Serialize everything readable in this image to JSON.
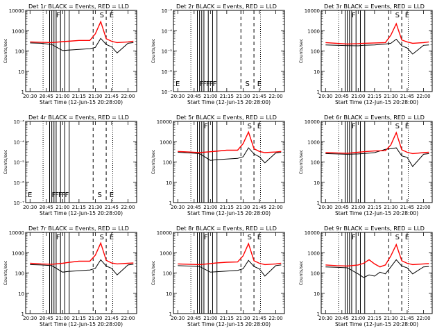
{
  "figure": {
    "time_label": "Start Time (12-Jun-15 20:28:00)",
    "y_label": "Counts/sec",
    "x_ticks": [
      "20:30",
      "20:45",
      "21:00",
      "21:15",
      "21:30",
      "21:45",
      "22:00"
    ],
    "colors": {
      "events": "#000000",
      "lld": "#ff0000"
    }
  },
  "chart_data": [
    {
      "type": "line",
      "title": "Det 1r BLACK = Events, RED = LLD",
      "y_scale": "log",
      "ylim": [
        1,
        10000
      ],
      "y_ticks": [
        "1",
        "10",
        "100",
        "1000",
        "10000"
      ],
      "flags": {
        "markers": [
          "F",
          "S",
          "E"
        ]
      },
      "series": [
        {
          "key": "events",
          "x": [
            "20:30",
            "20:40",
            "20:50",
            "21:00",
            "21:05",
            "21:15",
            "21:25",
            "21:30",
            "21:35",
            "21:40",
            "21:45",
            "21:50",
            "22:00",
            "22:05"
          ],
          "values": [
            250,
            240,
            210,
            105,
            110,
            120,
            130,
            150,
            420,
            210,
            160,
            80,
            240,
            260
          ]
        },
        {
          "key": "lld",
          "x": [
            "20:30",
            "20:40",
            "20:50",
            "21:00",
            "21:05",
            "21:15",
            "21:25",
            "21:30",
            "21:35",
            "21:40",
            "21:45",
            "21:50",
            "22:00",
            "22:05"
          ],
          "values": [
            280,
            270,
            260,
            290,
            300,
            330,
            330,
            700,
            2800,
            400,
            300,
            260,
            280,
            300
          ]
        }
      ]
    },
    {
      "type": "line",
      "title": "Det 2r BLACK = Events, RED = LLD",
      "y_scale": "log",
      "ylim": [
        1e-07,
        0.001
      ],
      "y_ticks": [
        "10⁻⁷",
        "10⁻⁶",
        "10⁻⁵",
        "10⁻⁴",
        "10⁻³"
      ],
      "flags": {
        "markers": [
          "E",
          "F",
          "F",
          "F",
          "F",
          "F",
          "S",
          "E"
        ]
      },
      "series": []
    },
    {
      "type": "line",
      "title": "Det 3r BLACK = Events, RED = LLD",
      "y_scale": "log",
      "ylim": [
        1,
        10000
      ],
      "y_ticks": [
        "1",
        "10",
        "100",
        "1000",
        "10000"
      ],
      "flags": {
        "markers": [
          "F",
          "S",
          "E"
        ]
      },
      "series": [
        {
          "key": "events",
          "x": [
            "20:30",
            "20:40",
            "20:50",
            "21:00",
            "21:05",
            "21:15",
            "21:25",
            "21:30",
            "21:35",
            "21:40",
            "21:45",
            "21:50",
            "22:00",
            "22:05"
          ],
          "values": [
            200,
            190,
            185,
            180,
            190,
            200,
            220,
            240,
            380,
            180,
            140,
            70,
            190,
            200
          ]
        },
        {
          "key": "lld",
          "x": [
            "20:30",
            "20:40",
            "20:50",
            "21:00",
            "21:05",
            "21:15",
            "21:25",
            "21:30",
            "21:35",
            "21:40",
            "21:45",
            "21:50",
            "22:00",
            "22:05"
          ],
          "values": [
            260,
            240,
            220,
            230,
            240,
            250,
            260,
            600,
            2200,
            350,
            280,
            240,
            260,
            280
          ]
        }
      ]
    },
    {
      "type": "line",
      "title": "Det 4r BLACK = Events, RED = LLD",
      "y_scale": "log",
      "ylim": [
        1e-07,
        0.001
      ],
      "y_ticks": [
        "10⁻⁷",
        "10⁻⁶",
        "10⁻⁵",
        "10⁻⁴",
        "10⁻³"
      ],
      "flags": {
        "markers": [
          "E",
          "F",
          "F",
          "F",
          "F",
          "F",
          "S",
          "E"
        ]
      },
      "series": []
    },
    {
      "type": "line",
      "title": "Det 5r BLACK = Events, RED = LLD",
      "y_scale": "log",
      "ylim": [
        1,
        10000
      ],
      "y_ticks": [
        "1",
        "10",
        "100",
        "1000",
        "10000"
      ],
      "flags": {
        "markers": [
          "F",
          "S",
          "E"
        ]
      },
      "series": [
        {
          "key": "events",
          "x": [
            "20:30",
            "20:40",
            "20:50",
            "21:00",
            "21:05",
            "21:15",
            "21:25",
            "21:30",
            "21:35",
            "21:40",
            "21:45",
            "21:50",
            "22:00",
            "22:05"
          ],
          "values": [
            300,
            280,
            260,
            120,
            130,
            140,
            150,
            180,
            500,
            250,
            180,
            90,
            280,
            300
          ]
        },
        {
          "key": "lld",
          "x": [
            "20:30",
            "20:40",
            "20:50",
            "21:00",
            "21:05",
            "21:15",
            "21:25",
            "21:30",
            "21:35",
            "21:40",
            "21:45",
            "21:50",
            "22:00",
            "22:05"
          ],
          "values": [
            330,
            310,
            290,
            320,
            340,
            380,
            380,
            800,
            3000,
            450,
            330,
            290,
            310,
            330
          ]
        }
      ]
    },
    {
      "type": "line",
      "title": "Det 6r BLACK = Events, RED = LLD",
      "y_scale": "log",
      "ylim": [
        1,
        10000
      ],
      "y_ticks": [
        "1",
        "10",
        "100",
        "1000",
        "10000"
      ],
      "flags": {
        "markers": [
          "F",
          "S",
          "E"
        ]
      },
      "series": [
        {
          "key": "events",
          "x": [
            "20:30",
            "20:40",
            "20:50",
            "21:00",
            "21:05",
            "21:15",
            "21:25",
            "21:30",
            "21:35",
            "21:40",
            "21:45",
            "21:50",
            "22:00",
            "22:05"
          ],
          "values": [
            260,
            250,
            240,
            250,
            260,
            290,
            420,
            450,
            500,
            200,
            170,
            60,
            240,
            260
          ]
        },
        {
          "key": "lld",
          "x": [
            "20:30",
            "20:40",
            "20:50",
            "21:00",
            "21:05",
            "21:15",
            "21:25",
            "21:30",
            "21:35",
            "21:40",
            "21:45",
            "21:50",
            "22:00",
            "22:05"
          ],
          "values": [
            290,
            280,
            270,
            300,
            320,
            350,
            360,
            700,
            2800,
            400,
            300,
            260,
            290,
            300
          ]
        }
      ]
    },
    {
      "type": "line",
      "title": "Det 7r BLACK = Events, RED = LLD",
      "y_scale": "log",
      "ylim": [
        1,
        10000
      ],
      "y_ticks": [
        "1",
        "10",
        "100",
        "1000",
        "10000"
      ],
      "flags": {
        "markers": [
          "F",
          "S",
          "E"
        ]
      },
      "series": [
        {
          "key": "events",
          "x": [
            "20:30",
            "20:40",
            "20:50",
            "21:00",
            "21:05",
            "21:15",
            "21:25",
            "21:30",
            "21:35",
            "21:40",
            "21:45",
            "21:50",
            "22:00",
            "22:05"
          ],
          "values": [
            260,
            250,
            230,
            110,
            120,
            130,
            140,
            170,
            450,
            220,
            170,
            80,
            250,
            270
          ]
        },
        {
          "key": "lld",
          "x": [
            "20:30",
            "20:40",
            "20:50",
            "21:00",
            "21:05",
            "21:15",
            "21:25",
            "21:30",
            "21:35",
            "21:40",
            "21:45",
            "21:50",
            "22:00",
            "22:05"
          ],
          "values": [
            300,
            280,
            270,
            300,
            330,
            380,
            380,
            750,
            3000,
            420,
            310,
            280,
            300,
            310
          ]
        }
      ]
    },
    {
      "type": "line",
      "title": "Det 8r BLACK = Events, RED = LLD",
      "y_scale": "log",
      "ylim": [
        1,
        10000
      ],
      "y_ticks": [
        "1",
        "10",
        "100",
        "1000",
        "10000"
      ],
      "flags": {
        "markers": [
          "F",
          "S",
          "E"
        ]
      },
      "series": [
        {
          "key": "events",
          "x": [
            "20:30",
            "20:40",
            "20:50",
            "21:00",
            "21:05",
            "21:15",
            "21:25",
            "21:30",
            "21:35",
            "21:40",
            "21:45",
            "21:50",
            "22:00",
            "22:05"
          ],
          "values": [
            230,
            220,
            210,
            110,
            115,
            125,
            135,
            160,
            420,
            210,
            160,
            70,
            230,
            250
          ]
        },
        {
          "key": "lld",
          "x": [
            "20:30",
            "20:40",
            "20:50",
            "21:00",
            "21:05",
            "21:15",
            "21:25",
            "21:30",
            "21:35",
            "21:40",
            "21:45",
            "21:50",
            "22:00",
            "22:05"
          ],
          "values": [
            280,
            270,
            260,
            290,
            310,
            340,
            350,
            700,
            2800,
            400,
            300,
            260,
            280,
            300
          ]
        }
      ]
    },
    {
      "type": "line",
      "title": "Det 9r BLACK = Events, RED = LLD",
      "y_scale": "log",
      "ylim": [
        1,
        10000
      ],
      "y_ticks": [
        "1",
        "10",
        "100",
        "1000",
        "10000"
      ],
      "flags": {
        "markers": [
          "F",
          "S",
          "E"
        ]
      },
      "series": [
        {
          "key": "events",
          "x": [
            "20:30",
            "20:40",
            "20:50",
            "21:00",
            "21:05",
            "21:10",
            "21:15",
            "21:20",
            "21:25",
            "21:30",
            "21:35",
            "21:40",
            "21:45",
            "21:50",
            "22:00",
            "22:05"
          ],
          "values": [
            200,
            190,
            180,
            90,
            60,
            80,
            70,
            110,
            90,
            200,
            450,
            220,
            180,
            90,
            200,
            210
          ]
        },
        {
          "key": "lld",
          "x": [
            "20:30",
            "20:40",
            "20:50",
            "21:00",
            "21:05",
            "21:10",
            "21:15",
            "21:20",
            "21:25",
            "21:30",
            "21:35",
            "21:40",
            "21:45",
            "21:50",
            "22:00",
            "22:05"
          ],
          "values": [
            250,
            230,
            220,
            250,
            300,
            450,
            280,
            200,
            250,
            700,
            2500,
            400,
            300,
            260,
            280,
            290
          ]
        }
      ]
    }
  ]
}
